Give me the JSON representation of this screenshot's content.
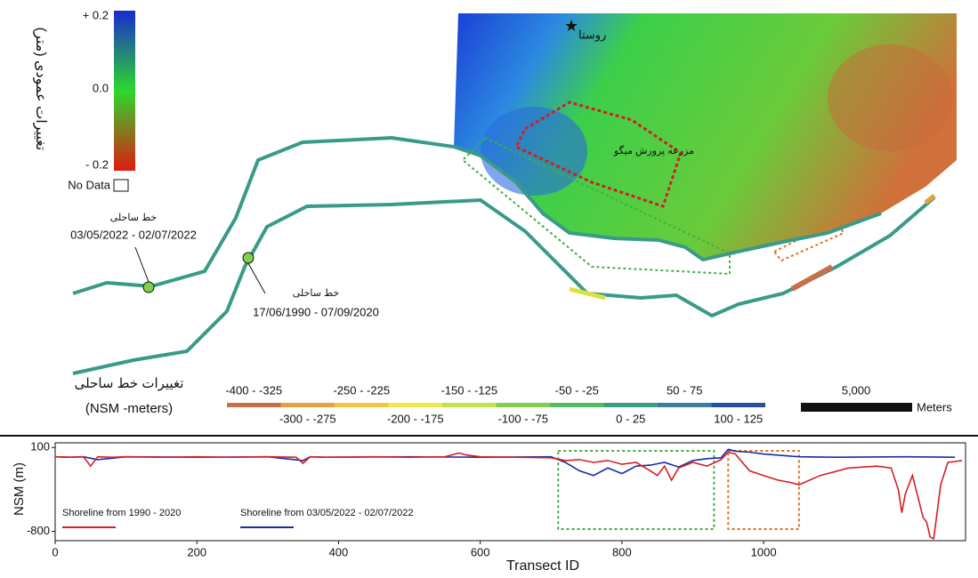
{
  "map": {
    "colorbar": {
      "title": "تغییرات عمودی (متر)",
      "top": "+ 0.2",
      "mid": "0.0",
      "bottom": "- 0.2",
      "nodata": "No Data"
    },
    "village": "روستا",
    "farm": "مزرعه پرورش میگو",
    "shoreline_a": {
      "title": "خط ساحلی",
      "dates": "03/05/2022 - 02/07/2022"
    },
    "shoreline_b": {
      "title": "خط ساحلی",
      "dates": "17/06/1990 - 07/09/2020"
    },
    "legend_title": "تغییرات خط ساحلی",
    "legend_unit": "(NSM -meters)",
    "classes": [
      {
        "label": "-400 - -325",
        "color": "#c4704a"
      },
      {
        "label": "-300 - -275",
        "color": "#e8a040"
      },
      {
        "label": "-250 - -225",
        "color": "#f3c640"
      },
      {
        "label": "-200 - -175",
        "color": "#eee84a"
      },
      {
        "label": "-150 - -125",
        "color": "#c2e24a"
      },
      {
        "label": "-100 - -75",
        "color": "#7fd04a"
      },
      {
        "label": "-50 - -25",
        "color": "#52bd62"
      },
      {
        "label": "0 - 25",
        "color": "#3a9e86"
      },
      {
        "label": "50 - 75",
        "color": "#3a7fa0"
      },
      {
        "label": "100 - 125",
        "color": "#2a4fa0"
      }
    ],
    "scale": {
      "value": "5,000",
      "unit": "Meters"
    }
  },
  "chart_data": {
    "type": "line",
    "xlabel": "Transect ID",
    "ylabel": "NSM (m)",
    "xlim": [
      0,
      1285
    ],
    "xticks": [
      0,
      200,
      400,
      600,
      800,
      1000
    ],
    "ylim": [
      -900,
      150
    ],
    "yticks": [
      100,
      -800
    ],
    "series": [
      {
        "name": "Shoreline from 1990 - 2020",
        "color": "#d62020",
        "x": [
          0,
          20,
          40,
          50,
          60,
          80,
          100,
          150,
          200,
          250,
          300,
          340,
          350,
          360,
          380,
          450,
          500,
          550,
          570,
          580,
          600,
          650,
          700,
          720,
          740,
          760,
          780,
          800,
          820,
          840,
          850,
          860,
          870,
          880,
          900,
          920,
          940,
          950,
          960,
          980,
          1000,
          1020,
          1040,
          1050,
          1080,
          1120,
          1160,
          1180,
          1190,
          1195,
          1200,
          1210,
          1220,
          1225,
          1230,
          1235,
          1240,
          1250,
          1260,
          1270,
          1280
        ],
        "values": [
          0,
          -5,
          0,
          -100,
          0,
          -5,
          0,
          -5,
          0,
          -5,
          0,
          -5,
          -70,
          0,
          -5,
          0,
          -5,
          0,
          40,
          20,
          0,
          -5,
          -10,
          -40,
          -30,
          -60,
          -40,
          -80,
          -60,
          -150,
          -200,
          -100,
          -250,
          -120,
          -60,
          -100,
          -30,
          50,
          30,
          -150,
          -200,
          -250,
          -280,
          -300,
          -200,
          -120,
          -100,
          -120,
          -350,
          -600,
          -400,
          -200,
          -500,
          -650,
          -700,
          -860,
          -880,
          -300,
          -60,
          -50,
          -40
        ]
      },
      {
        "name": "Shoreline from 03/05/2022 - 02/07/2022",
        "color": "#1a2aa8",
        "x": [
          0,
          20,
          40,
          60,
          100,
          200,
          300,
          350,
          360,
          380,
          500,
          600,
          700,
          720,
          740,
          760,
          780,
          800,
          820,
          840,
          860,
          880,
          900,
          920,
          940,
          950,
          960,
          980,
          1000,
          1050,
          1100,
          1200,
          1270
        ],
        "values": [
          0,
          -5,
          0,
          -30,
          0,
          -5,
          0,
          -40,
          0,
          -5,
          0,
          -5,
          0,
          -60,
          -150,
          -200,
          -120,
          -180,
          -100,
          -90,
          -60,
          -110,
          -40,
          -20,
          -10,
          80,
          60,
          50,
          30,
          0,
          -5,
          0,
          -5
        ]
      }
    ]
  }
}
